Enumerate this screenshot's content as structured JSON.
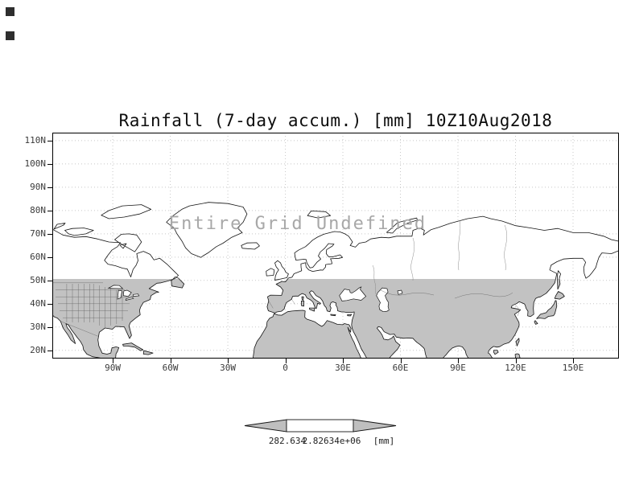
{
  "title": "Rainfall (7-day accum.) [mm] 10Z10Aug2018",
  "overlay_message": "Entire Grid Undefined",
  "axes": {
    "lat_ticks": [
      "110N",
      "100N",
      "90N",
      "80N",
      "70N",
      "60N",
      "50N",
      "40N",
      "30N",
      "20N"
    ],
    "lon_ticks": [
      "90W",
      "60W",
      "30W",
      "0",
      "30E",
      "60E",
      "90E",
      "120E",
      "150E"
    ]
  },
  "colorbar": {
    "left_label": "282.634",
    "right_label": "2.82634e+06",
    "units": "[mm]"
  },
  "colors": {
    "shaded_land": "#c2c2c2",
    "coastline": "#141414",
    "grid_dots": "#c8c8c8",
    "overlay_text": "#a8a8a8",
    "arrow_fill": "#bfbfbf"
  },
  "chart_data": {
    "type": "map",
    "title": "Rainfall (7-day accum.) [mm] 10Z10Aug2018",
    "variable": "Rainfall (7-day accum.)",
    "accumulation": "7-day",
    "units": "mm",
    "valid_time": "10Z10Aug2018",
    "status_message": "Entire Grid Undefined",
    "values": "none plotted - entire grid undefined",
    "x_axis": {
      "label": "longitude",
      "ticks": [
        "90W",
        "60W",
        "30W",
        "0",
        "30E",
        "60E",
        "90E",
        "120E",
        "150E"
      ]
    },
    "y_axis": {
      "label": "latitude",
      "ticks": [
        "110N",
        "100N",
        "90N",
        "80N",
        "70N",
        "60N",
        "50N",
        "40N",
        "30N",
        "20N"
      ]
    },
    "grid": "dotted graticule every 10 deg lat / 30 deg lon",
    "map_extent": "approx 120W-175E, 17N-113N",
    "shaded_region": "land areas between approx 20N and 50N filled gray",
    "legend_position": "bottom-center",
    "colorbar": {
      "style": "left-arrow / white box / right-arrow",
      "labels": [
        "282.634",
        "2.82634e+06"
      ],
      "units": "[mm]"
    }
  }
}
